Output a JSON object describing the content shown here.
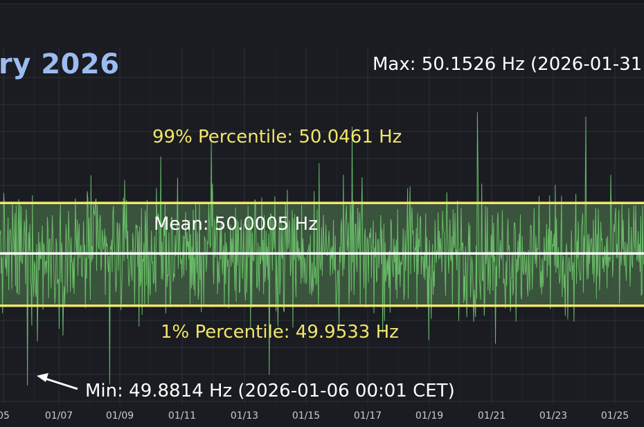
{
  "title": "ry 2026",
  "annotations": {
    "max": "Max: 50.1526 Hz (2026-01-31",
    "p99": "99% Percentile: 50.0461 Hz",
    "mean": "Mean: 50.0005 Hz",
    "p1": "1% Percentile: 49.9533 Hz",
    "min": "Min: 49.8814 Hz (2026-01-06 00:01 CET)"
  },
  "colors": {
    "background": "#1a1c22",
    "grid": "#2c3038",
    "series": "#6cc36a",
    "band_fill": "#3e5a3f",
    "percentile_line": "#f2e66a",
    "mean_line": "#ffffff",
    "title": "#9bbcf0"
  },
  "chart_data": {
    "type": "line",
    "title": "ry 2026",
    "xlabel": "",
    "ylabel": "",
    "x_ticks": [
      "05",
      "01/07",
      "01/09",
      "01/11",
      "01/13",
      "01/15",
      "01/17",
      "01/19",
      "01/21",
      "01/23",
      "01/25"
    ],
    "x_range": [
      "2026-01-05 00:00",
      "2026-01-26 06:00"
    ],
    "ylim": [
      49.87,
      50.17
    ],
    "grid": true,
    "reference_lines": {
      "p99": 50.0461,
      "mean": 50.0005,
      "p1": 49.9533
    },
    "extremes": {
      "max": {
        "value": 50.1526,
        "time": "2026-01-31"
      },
      "min": {
        "value": 49.8814,
        "time": "2026-01-06 00:01 CET"
      }
    },
    "series": [
      {
        "values": [
          50.047,
          49.921,
          50.012,
          49.964,
          50.071,
          49.882,
          50.019,
          49.945,
          50.088,
          50.004,
          49.962,
          50.101,
          49.951,
          50.033,
          49.891,
          50.058,
          49.973,
          50.082,
          49.936,
          50.115,
          50.006,
          49.947,
          50.061,
          49.922,
          50.039,
          49.958,
          50.077,
          49.919,
          50.028,
          49.968,
          50.053,
          49.941,
          50.124,
          49.969,
          50.031
        ]
      }
    ]
  }
}
